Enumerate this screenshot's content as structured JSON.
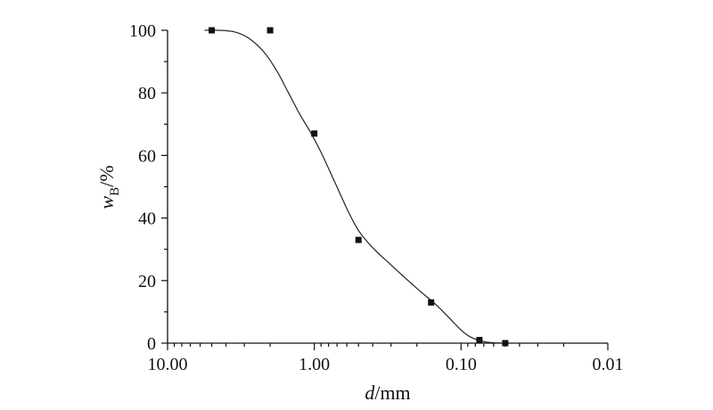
{
  "chart_data": {
    "type": "scatter",
    "x_scale": "log-reversed",
    "xlim": [
      10.0,
      0.01
    ],
    "ylim": [
      0,
      100
    ],
    "xlabel": {
      "main": "d",
      "unit": "/mm"
    },
    "ylabel": {
      "main": "w",
      "sub": "B",
      "unit": "/%"
    },
    "x_tick_labels": [
      "10.00",
      "1.00",
      "0.10",
      "0.01"
    ],
    "x_ticks": [
      10.0,
      1.0,
      0.1,
      0.01
    ],
    "y_ticks": [
      0,
      20,
      40,
      60,
      80,
      100
    ],
    "grid": false,
    "series": [
      {
        "points": [
          {
            "x": 5.0,
            "y": 100
          },
          {
            "x": 2.0,
            "y": 100
          },
          {
            "x": 1.0,
            "y": 67
          },
          {
            "x": 0.5,
            "y": 33
          },
          {
            "x": 0.16,
            "y": 13
          },
          {
            "x": 0.075,
            "y": 1
          },
          {
            "x": 0.05,
            "y": 0
          }
        ]
      }
    ],
    "fit_curve": [
      [
        5.6,
        100
      ],
      [
        4.5,
        100
      ],
      [
        3.5,
        99.5
      ],
      [
        2.8,
        97.5
      ],
      [
        2.2,
        93
      ],
      [
        1.8,
        87
      ],
      [
        1.5,
        80
      ],
      [
        1.25,
        73
      ],
      [
        1.05,
        67
      ],
      [
        0.9,
        61
      ],
      [
        0.75,
        53
      ],
      [
        0.6,
        43
      ],
      [
        0.5,
        36
      ],
      [
        0.4,
        30.5
      ],
      [
        0.3,
        25
      ],
      [
        0.2,
        17.5
      ],
      [
        0.15,
        12.5
      ],
      [
        0.12,
        8
      ],
      [
        0.1,
        4.2
      ],
      [
        0.085,
        1.8
      ],
      [
        0.07,
        0.5
      ],
      [
        0.06,
        0.1
      ],
      [
        0.05,
        0
      ]
    ]
  }
}
